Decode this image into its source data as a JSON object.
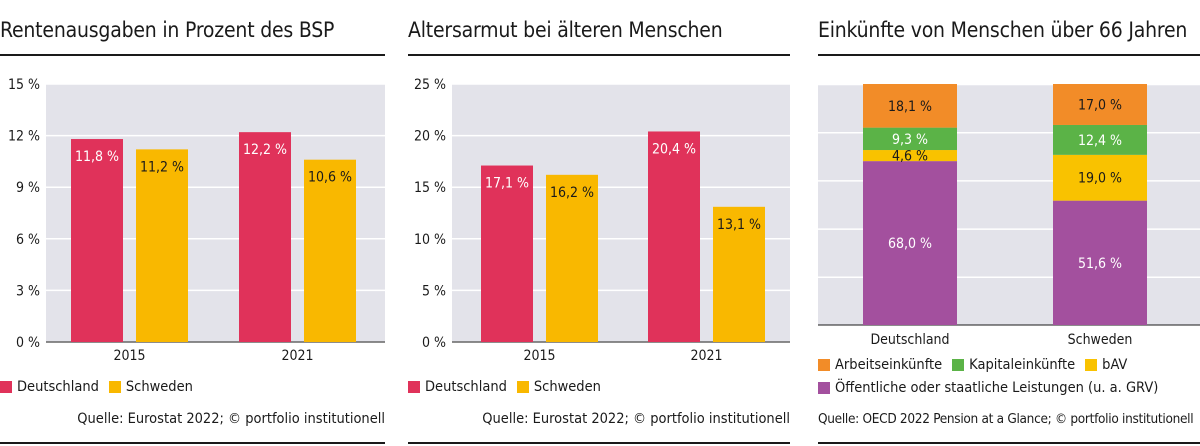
{
  "colors": {
    "deutschland": "#e0325a",
    "schweden": "#f9b800",
    "arbeit": "#f28c28",
    "kapital": "#5bb347",
    "bav": "#f9c200",
    "oeffentlich": "#a3509e",
    "plotbg": "#e3e3ea"
  },
  "panels": [
    {
      "title": "Rentenausgaben in Prozent des BSP",
      "source": "Quelle: Eurostat 2022; © portfolio institutionell",
      "legend": [
        "Deutschland",
        "Schweden"
      ]
    },
    {
      "title": "Altersarmut bei älteren Menschen",
      "source": "Quelle: Eurostat 2022; © portfolio institutionell",
      "legend": [
        "Deutschland",
        "Schweden"
      ]
    },
    {
      "title": "Einkünfte von Menschen über 66 Jahren",
      "source": "Quelle: OECD 2022 Pension at a Glance; © portfolio institutionell",
      "legend": [
        "Arbeitseinkünfte",
        "Kapitaleinkünfte",
        "bAV",
        "Öffentliche oder staatliche Leistungen (u. a. GRV)"
      ]
    }
  ],
  "chart_data": [
    {
      "type": "bar",
      "title": "Rentenausgaben in Prozent des BSP",
      "categories": [
        "2015",
        "2021"
      ],
      "series": [
        {
          "name": "Deutschland",
          "values": [
            11.8,
            12.2
          ],
          "labels": [
            "11,8 %",
            "12,2 %"
          ]
        },
        {
          "name": "Schweden",
          "values": [
            11.2,
            10.6
          ],
          "labels": [
            "11,2 %",
            "10,6 %"
          ]
        }
      ],
      "ylim": [
        0,
        15
      ],
      "yticks": [
        0,
        3,
        6,
        9,
        12,
        15
      ],
      "ytick_labels": [
        "0 %",
        "3 %",
        "6 %",
        "9 %",
        "12 %",
        "15 %"
      ],
      "grid": true
    },
    {
      "type": "bar",
      "title": "Altersarmut bei älteren Menschen",
      "categories": [
        "2015",
        "2021"
      ],
      "series": [
        {
          "name": "Deutschland",
          "values": [
            17.1,
            20.4
          ],
          "labels": [
            "17,1 %",
            "20,4 %"
          ]
        },
        {
          "name": "Schweden",
          "values": [
            16.2,
            13.1
          ],
          "labels": [
            "16,2 %",
            "13,1 %"
          ]
        }
      ],
      "ylim": [
        0,
        25
      ],
      "yticks": [
        0,
        5,
        10,
        15,
        20,
        25
      ],
      "ytick_labels": [
        "0 %",
        "5 %",
        "10 %",
        "15 %",
        "20 %",
        "25 %"
      ],
      "grid": true
    },
    {
      "type": "bar",
      "stacked": true,
      "title": "Einkünfte von Menschen über 66 Jahren",
      "categories": [
        "Deutschland",
        "Schweden"
      ],
      "series": [
        {
          "name": "Öffentliche oder staatliche Leistungen (u. a. GRV)",
          "values": [
            68.0,
            51.6
          ],
          "labels": [
            "68,0 %",
            "51,6 %"
          ]
        },
        {
          "name": "bAV",
          "values": [
            4.6,
            19.0
          ],
          "labels": [
            "4,6 %",
            "19,0 %"
          ]
        },
        {
          "name": "Kapitaleinkünfte",
          "values": [
            9.3,
            12.4
          ],
          "labels": [
            "9,3 %",
            "12,4 %"
          ]
        },
        {
          "name": "Arbeitseinkünfte",
          "values": [
            18.1,
            17.0
          ],
          "labels": [
            "18,1 %",
            "17,0 %"
          ]
        }
      ],
      "ylim": [
        0,
        100
      ],
      "grid": true
    }
  ]
}
